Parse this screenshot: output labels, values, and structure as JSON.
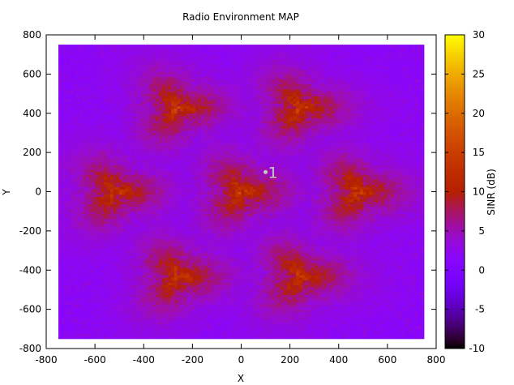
{
  "chart_data": {
    "type": "heatmap",
    "title": "Radio Environment MAP",
    "xlabel": "X",
    "ylabel": "Y",
    "xlim": [
      -800,
      800
    ],
    "ylim": [
      -800,
      800
    ],
    "data_extent": {
      "x": [
        -750,
        750
      ],
      "y": [
        -750,
        750
      ]
    },
    "xticks": [
      -800,
      -600,
      -400,
      -200,
      0,
      200,
      400,
      600,
      800
    ],
    "yticks": [
      -800,
      -600,
      -400,
      -200,
      0,
      200,
      400,
      600,
      800
    ],
    "grid": false,
    "colorbar": {
      "label": "SINR (dB)",
      "range": [
        -10,
        30
      ],
      "ticks": [
        -10,
        -5,
        0,
        5,
        10,
        15,
        20,
        25,
        30
      ],
      "colormap": "gnuplot pm3d (black-purple-red-orange-yellow)"
    },
    "background_level_db": 1,
    "base_stations": [
      {
        "x": -260,
        "y": 430
      },
      {
        "x": 240,
        "y": 430
      },
      {
        "x": -520,
        "y": 0
      },
      {
        "x": 0,
        "y": 0
      },
      {
        "x": 480,
        "y": 0
      },
      {
        "x": -260,
        "y": -430
      },
      {
        "x": 240,
        "y": -430
      }
    ],
    "peak_sinr_db": 16,
    "annotation": {
      "label": "1",
      "x": 100,
      "y": 100
    }
  }
}
